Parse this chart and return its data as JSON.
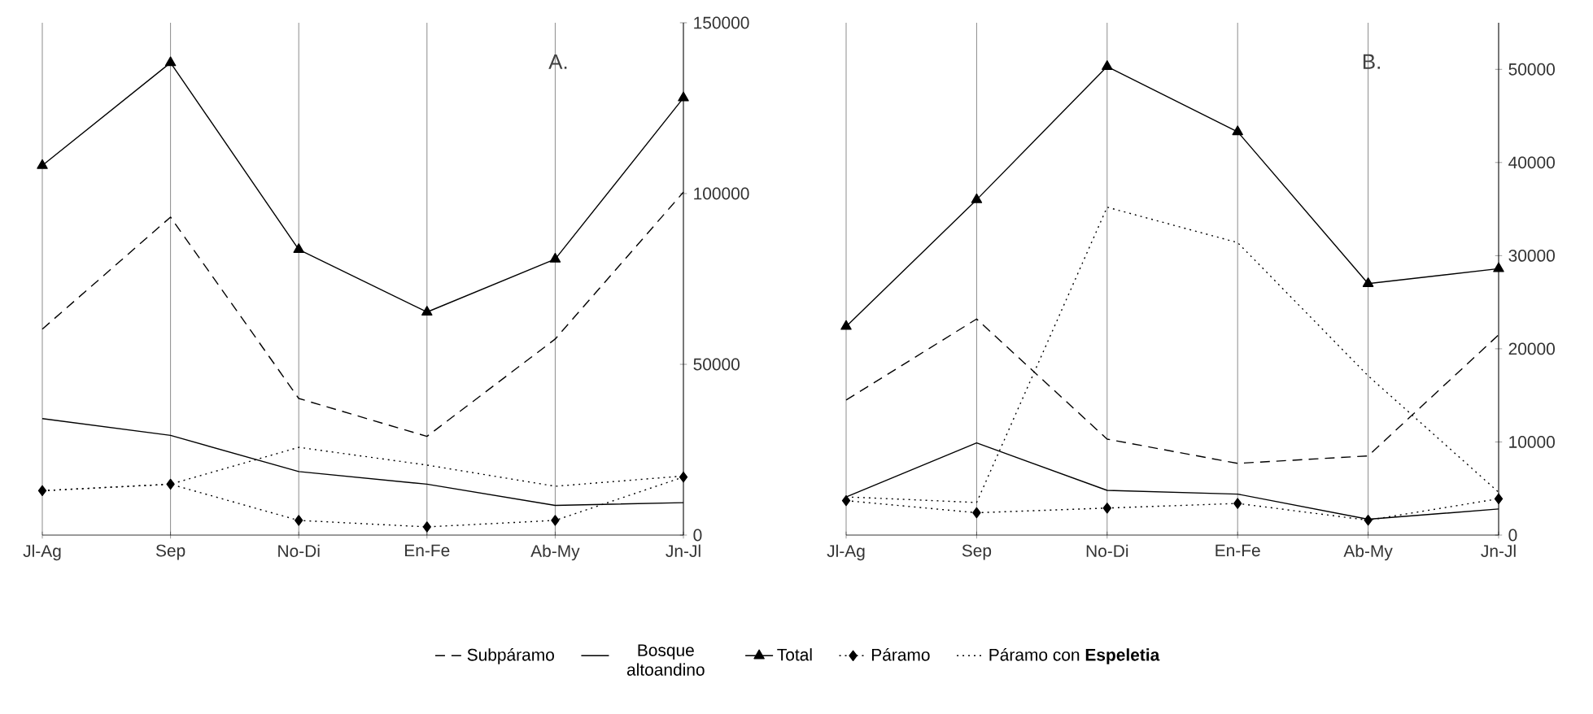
{
  "chart_data": [
    {
      "type": "line",
      "title": "A.",
      "categories": [
        "Jl-Ag",
        "Sep",
        "No-Di",
        "En-Fe",
        "Ab-My",
        "Jn-Jl"
      ],
      "ylim": [
        0,
        150000
      ],
      "yticks": [
        0,
        50000,
        100000,
        150000
      ],
      "grid": "x",
      "legend": "bottom",
      "series": [
        {
          "name": "Subpáramo",
          "color": "#000000",
          "line_style": "dashed",
          "marker": "none",
          "values": [
            60300,
            93100,
            40000,
            28900,
            57400,
            100400
          ]
        },
        {
          "name": "Bosque altoandino",
          "color": "#000000",
          "line_style": "solid",
          "marker": "none",
          "values": [
            34100,
            29200,
            18600,
            14900,
            8700,
            9500
          ]
        },
        {
          "name": "Total",
          "color": "#000000",
          "line_style": "solid",
          "marker": "triangle",
          "values": [
            108200,
            138300,
            83600,
            65300,
            80800,
            128000
          ]
        },
        {
          "name": "Páramo",
          "color": "#000000",
          "line_style": "dotted",
          "marker": "diamond",
          "values": [
            13000,
            14900,
            4300,
            2400,
            4300,
            17000
          ]
        },
        {
          "name": "Páramo con **Espeletia**",
          "color": "#000000",
          "line_style": "dotted",
          "marker": "none",
          "values": [
            13000,
            14900,
            25700,
            20500,
            14300,
            17300
          ]
        }
      ]
    },
    {
      "type": "line",
      "title": "B.",
      "categories": [
        "Jl-Ag",
        "Sep",
        "No-Di",
        "En-Fe",
        "Ab-My",
        "Jn-Jl"
      ],
      "ylim": [
        0,
        55000
      ],
      "yticks": [
        0,
        10000,
        20000,
        30000,
        40000,
        50000
      ],
      "grid": "x",
      "series": [
        {
          "color": "#000000",
          "line_style": "dashed",
          "marker": "none",
          "values": [
            14500,
            23200,
            10300,
            7700,
            8500,
            21500
          ]
        },
        {
          "color": "#000000",
          "line_style": "solid",
          "marker": "none",
          "values": [
            4100,
            9900,
            4800,
            4400,
            1700,
            2800
          ]
        },
        {
          "color": "#000000",
          "line_style": "solid",
          "marker": "triangle",
          "values": [
            22400,
            36000,
            50300,
            43300,
            27000,
            28600
          ]
        },
        {
          "color": "#000000",
          "line_style": "dotted",
          "marker": "diamond",
          "values": [
            3700,
            2400,
            2900,
            3400,
            1600,
            3900
          ]
        },
        {
          "color": "#000000",
          "line_style": "dotted",
          "marker": "none",
          "values": [
            4100,
            3500,
            35200,
            31400,
            17100,
            4600
          ]
        }
      ]
    }
  ]
}
